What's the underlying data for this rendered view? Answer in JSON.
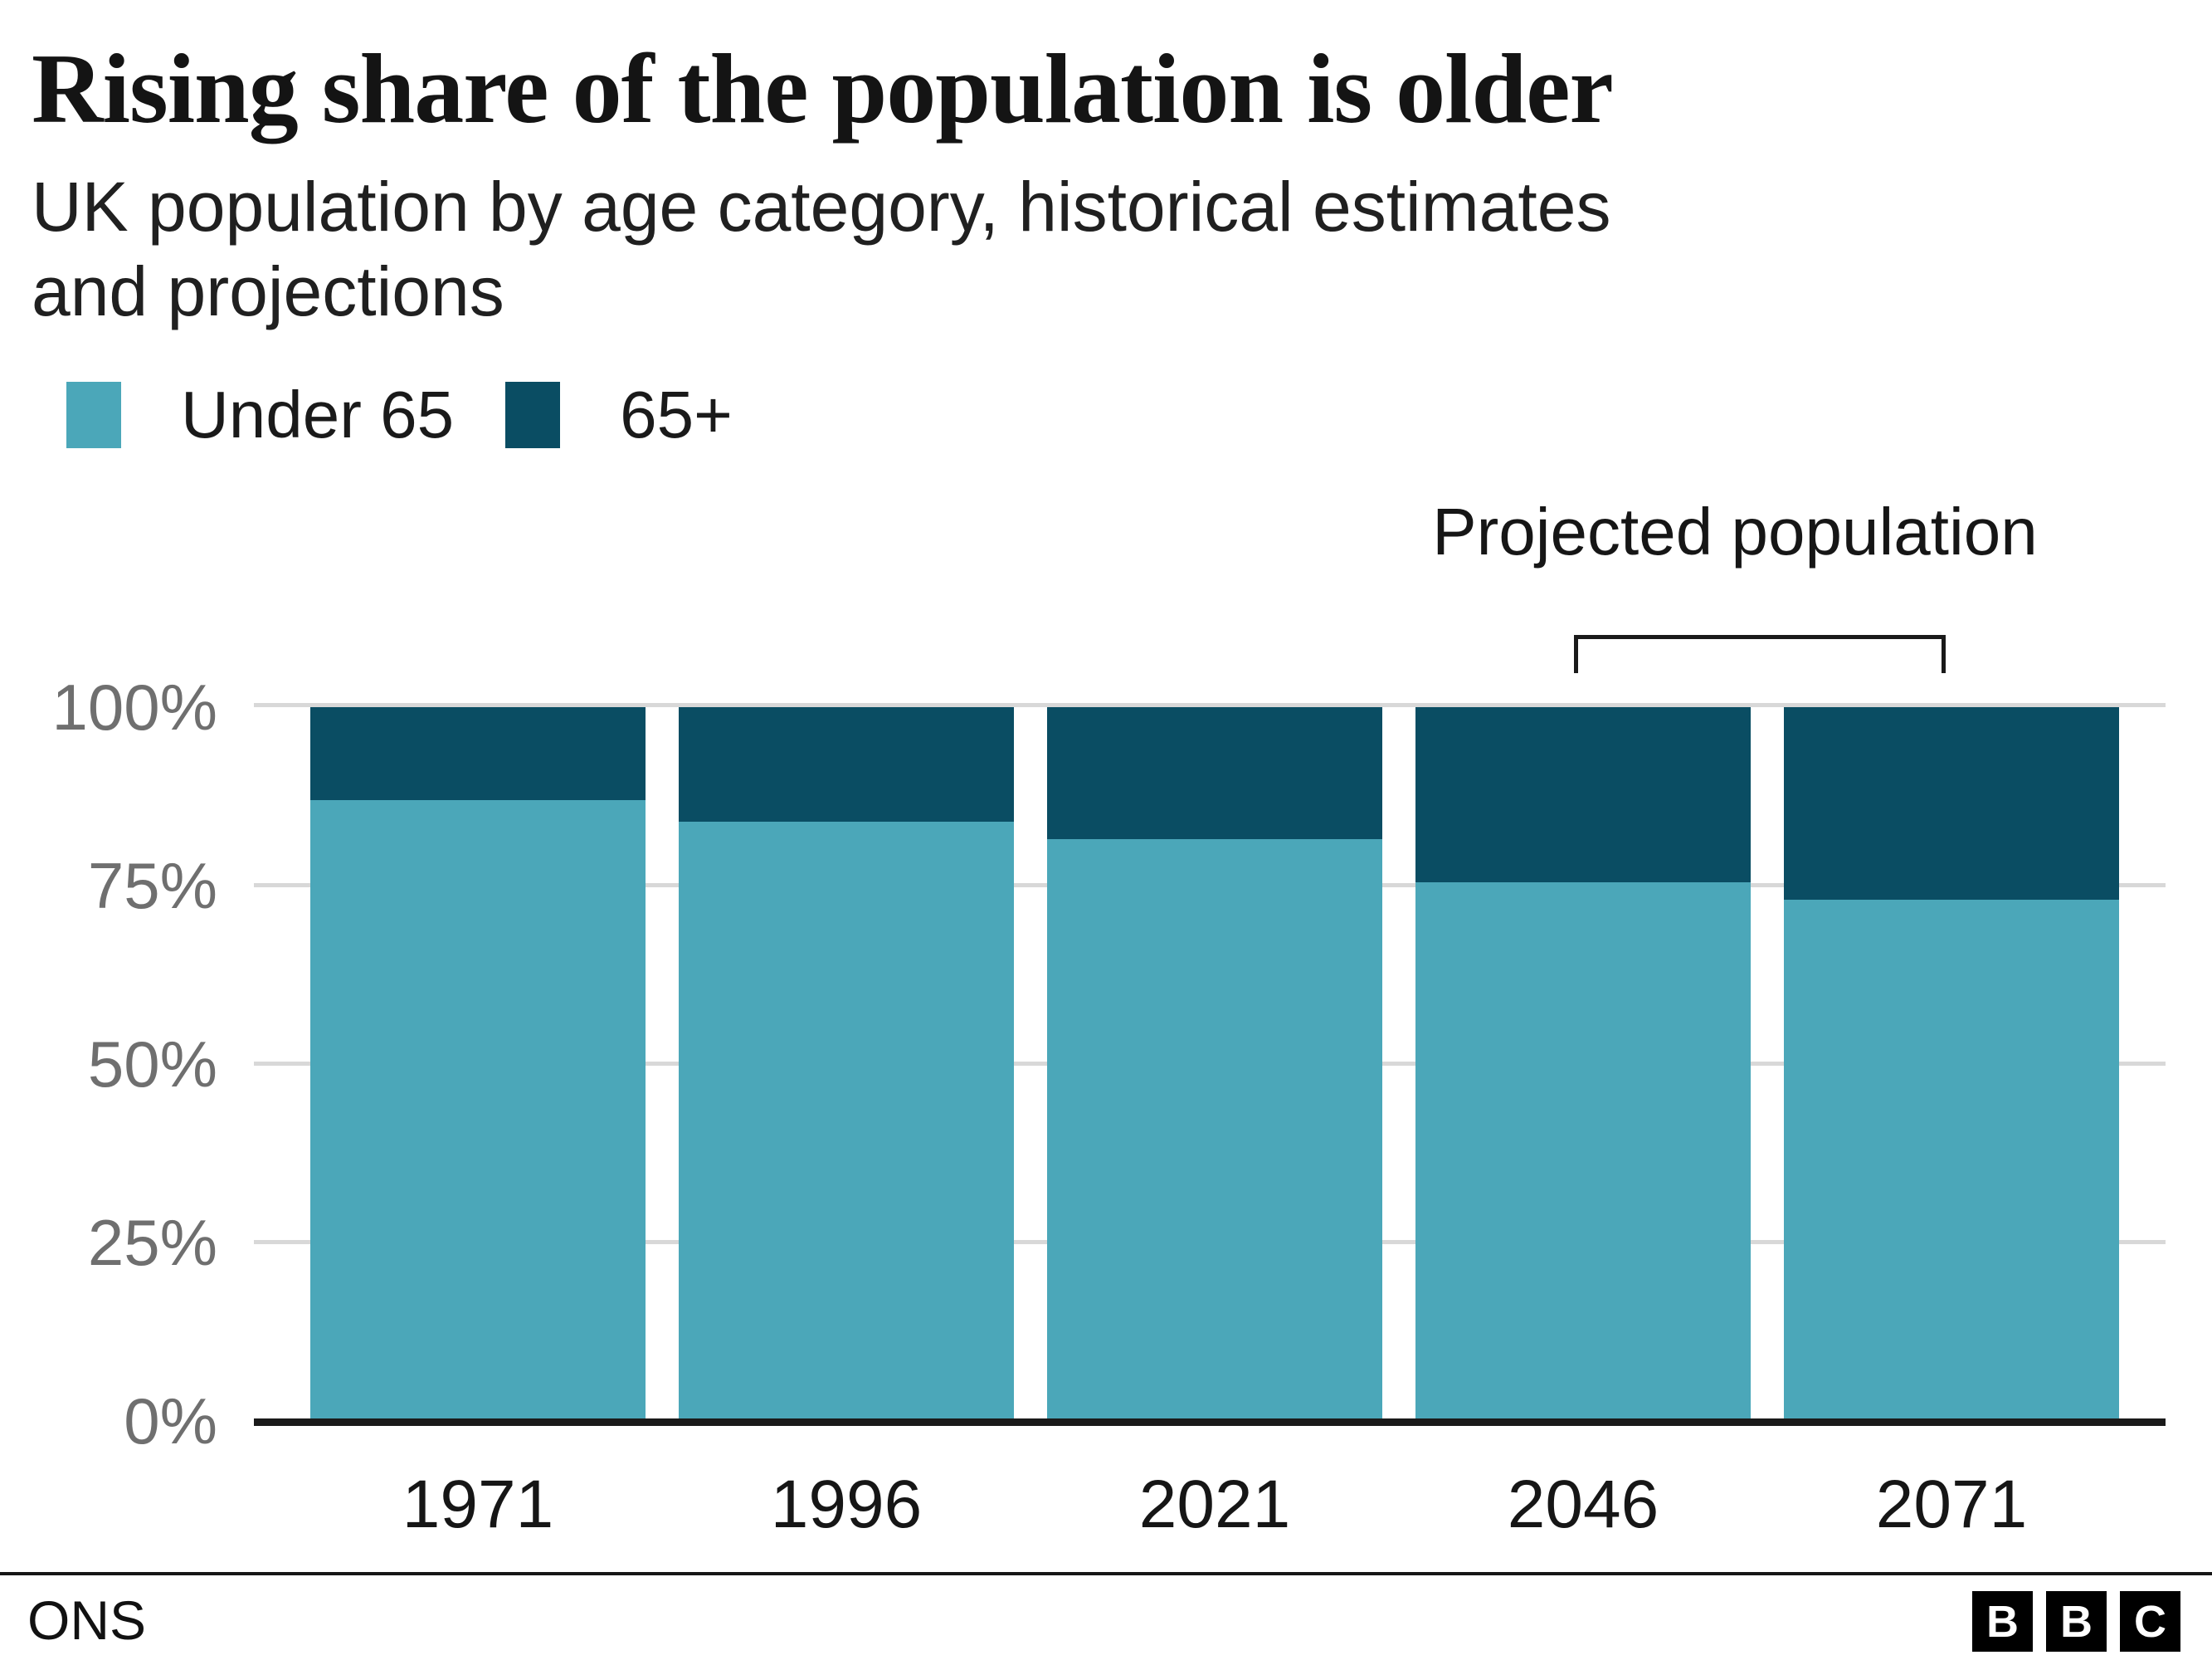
{
  "title": "Rising share of the population is older",
  "subtitle_lines": [
    "UK population by age category, historical estimates",
    "and projections"
  ],
  "legend": {
    "items": [
      {
        "label": "Under 65",
        "color": "#4BA7B9"
      },
      {
        "label": "65+",
        "color": "#0A4D63"
      }
    ]
  },
  "annotation": {
    "label": "Projected population"
  },
  "chart_data": {
    "type": "bar",
    "stacked": true,
    "percent_stacked": true,
    "title": "Rising share of the population is older",
    "subtitle": "UK population by age category, historical estimates and projections",
    "categories": [
      "1971",
      "1996",
      "2021",
      "2046",
      "2071"
    ],
    "series": [
      {
        "name": "Under 65",
        "color": "#4BA7B9",
        "values": [
          87,
          84,
          81.5,
          75.5,
          73
        ]
      },
      {
        "name": "65+",
        "color": "#0A4D63",
        "values": [
          13,
          16,
          18.5,
          24.5,
          27
        ]
      }
    ],
    "y_axis": {
      "ticks": [
        "100%",
        "75%",
        "50%",
        "25%",
        "0%"
      ],
      "ylim": [
        0,
        100
      ],
      "grid": true
    },
    "annotations": [
      {
        "label": "Projected population",
        "applies_to": [
          "2046",
          "2071"
        ]
      }
    ],
    "legend_position": "top-left",
    "colors": {
      "grid": "#d8d8d8",
      "axis": "#1a1a1a",
      "tick_label": "#6f6f6f",
      "text": "#161616"
    }
  },
  "footer": {
    "source": "ONS",
    "logo": [
      "B",
      "B",
      "C"
    ]
  }
}
